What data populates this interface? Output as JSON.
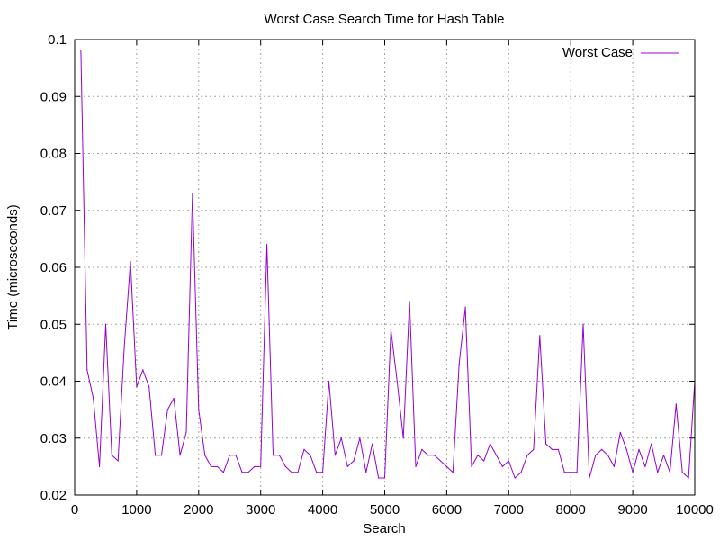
{
  "chart_data": {
    "type": "line",
    "title": "Worst Case Search Time for Hash Table",
    "xlabel": "Search",
    "ylabel": "Time (microseconds)",
    "xlim": [
      0,
      10000
    ],
    "ylim": [
      0.02,
      0.1
    ],
    "xticks": [
      0,
      1000,
      2000,
      3000,
      4000,
      5000,
      6000,
      7000,
      8000,
      9000,
      10000
    ],
    "yticks": [
      0.02,
      0.03,
      0.04,
      0.05,
      0.06,
      0.07,
      0.08,
      0.09,
      0.1
    ],
    "xtick_labels": [
      "0",
      "1000",
      "2000",
      "3000",
      "4000",
      "5000",
      "6000",
      "7000",
      "8000",
      "9000",
      "10000"
    ],
    "ytick_labels": [
      "0.02",
      "0.03",
      "0.04",
      "0.05",
      "0.06",
      "0.07",
      "0.08",
      "0.09",
      "0.1"
    ],
    "grid": true,
    "legend_position": "top-right",
    "series": [
      {
        "name": "Worst Case",
        "color": "#9400d3",
        "x": [
          100,
          200,
          300,
          400,
          500,
          600,
          700,
          800,
          900,
          1000,
          1100,
          1200,
          1300,
          1400,
          1500,
          1600,
          1700,
          1800,
          1900,
          2000,
          2100,
          2200,
          2300,
          2400,
          2500,
          2600,
          2700,
          2800,
          2900,
          3000,
          3100,
          3200,
          3300,
          3400,
          3500,
          3600,
          3700,
          3800,
          3900,
          4000,
          4100,
          4200,
          4300,
          4400,
          4500,
          4600,
          4700,
          4800,
          4900,
          5000,
          5100,
          5200,
          5300,
          5400,
          5500,
          5600,
          5700,
          5800,
          5900,
          6000,
          6100,
          6200,
          6300,
          6400,
          6500,
          6600,
          6700,
          6800,
          6900,
          7000,
          7100,
          7200,
          7300,
          7400,
          7500,
          7600,
          7700,
          7800,
          7900,
          8000,
          8100,
          8200,
          8300,
          8400,
          8500,
          8600,
          8700,
          8800,
          8900,
          9000,
          9100,
          9200,
          9300,
          9400,
          9500,
          9600,
          9700,
          9800,
          9900,
          10000
        ],
        "y": [
          0.098,
          0.042,
          0.037,
          0.025,
          0.05,
          0.027,
          0.026,
          0.046,
          0.061,
          0.039,
          0.042,
          0.039,
          0.027,
          0.027,
          0.035,
          0.037,
          0.027,
          0.031,
          0.073,
          0.035,
          0.027,
          0.025,
          0.025,
          0.024,
          0.027,
          0.027,
          0.024,
          0.024,
          0.025,
          0.025,
          0.064,
          0.027,
          0.027,
          0.025,
          0.024,
          0.024,
          0.028,
          0.027,
          0.024,
          0.024,
          0.04,
          0.027,
          0.03,
          0.025,
          0.026,
          0.03,
          0.024,
          0.029,
          0.023,
          0.023,
          0.049,
          0.04,
          0.03,
          0.054,
          0.025,
          0.028,
          0.027,
          0.027,
          0.026,
          0.025,
          0.024,
          0.043,
          0.053,
          0.025,
          0.027,
          0.026,
          0.029,
          0.027,
          0.025,
          0.026,
          0.023,
          0.024,
          0.027,
          0.028,
          0.048,
          0.029,
          0.028,
          0.028,
          0.024,
          0.024,
          0.024,
          0.05,
          0.023,
          0.027,
          0.028,
          0.027,
          0.025,
          0.031,
          0.028,
          0.024,
          0.028,
          0.025,
          0.029,
          0.024,
          0.027,
          0.024,
          0.036,
          0.024,
          0.023,
          0.04
        ]
      }
    ]
  }
}
